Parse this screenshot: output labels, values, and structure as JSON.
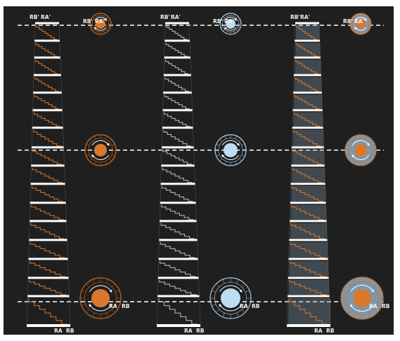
{
  "colors": {
    "background": "#1f1f1f",
    "orange": "#d9782d",
    "orange_stroke": "#c86a1f",
    "light_blue": "#bcdcf2",
    "blue_stroke": "#a9c9e0",
    "gray_blue": "#7f97ab",
    "white": "#ffffff",
    "dashed_line": "#ffffff"
  },
  "labels": {
    "rb_prime": "RB'",
    "ra_prime": "RA'",
    "ra": "RA",
    "rb": "RB"
  },
  "columns": [
    {
      "name": "orange-stair-column",
      "color_key": "orange"
    },
    {
      "name": "blue-stair-column",
      "color_key": "light_blue"
    },
    {
      "name": "gray-stair-column",
      "color_key": "gray_blue"
    }
  ],
  "levels": [
    "top",
    "middle",
    "bottom"
  ]
}
